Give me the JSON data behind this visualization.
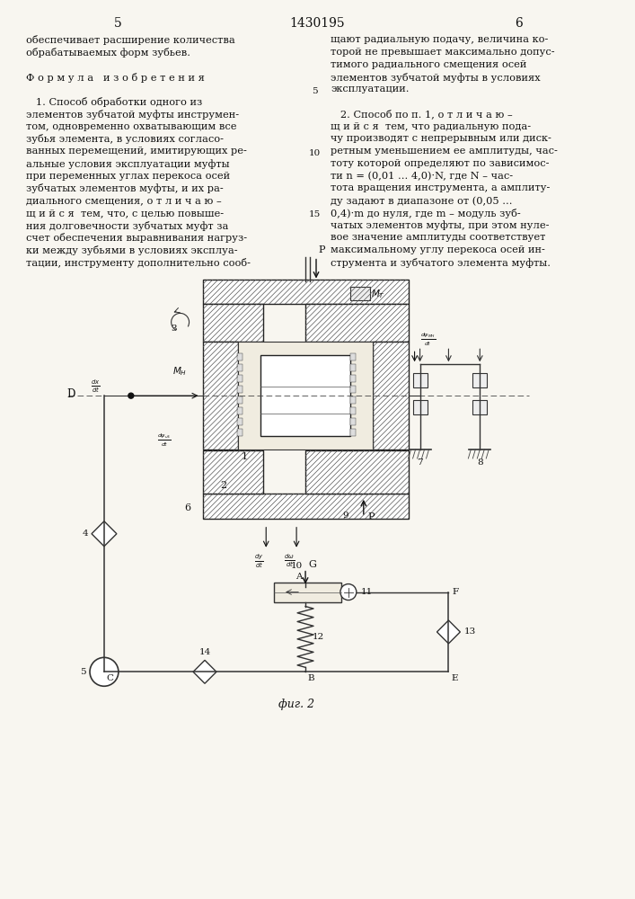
{
  "page_number_left": "5",
  "patent_number": "1430195",
  "page_number_right": "6",
  "left_col_lines": [
    "обеспечивает расширение количества",
    "обрабатываемых форм зубьев.",
    "",
    "Ф о р м у л а   и з о б р е т е н и я",
    "",
    "   1. Способ обработки одного из",
    "элементов зубчатой муфты инструмен-",
    "том, одновременно охватывающим все",
    "зубья элемента, в условиях согласо-",
    "ванных перемещений, имитирующих ре-",
    "альные условия эксплуатации муфты",
    "при переменных углах перекоса осей",
    "зубчатых элементов муфты, и их ра-",
    "диального смещения, о т л и ч а ю –",
    "щ и й с я  тем, что, с целью повыше-",
    "ния долговечности зубчатых муфт за",
    "счет обеспечения выравнивания нагруз-",
    "ки между зубьями в условиях эксплуа-",
    "тации, инструменту дополнительно сооб-"
  ],
  "right_col_lines": [
    "щают радиальную подачу, величина ко-",
    "торой не превышает максимально допус-",
    "тимого радиального смещения осей",
    "элементов зубчатой муфты в условиях",
    "эксплуатации.",
    "",
    "   2. Способ по п. 1, о т л и ч а ю –",
    "щ и й с я  тем, что радиальную пода-",
    "чу производят с непрерывным или диск-",
    "ретным уменьшением ее амплитуды, час-",
    "тоту которой определяют по зависимос-",
    "ти n = (0,01 ... 4,0)·N, где N – час-",
    "тота вращения инструмента, а амплиту-",
    "ду задают в диапазоне от (0,05 ...",
    "0,4)·m до нуля, где m – модуль зуб-",
    "чатых элементов муфты, при этом нуле-",
    "вое значение амплитуды соответствует",
    "максимальному углу перекоса осей ин-",
    "струмента и зубчатого элемента муфты."
  ],
  "fig_label": "фиг. 2"
}
